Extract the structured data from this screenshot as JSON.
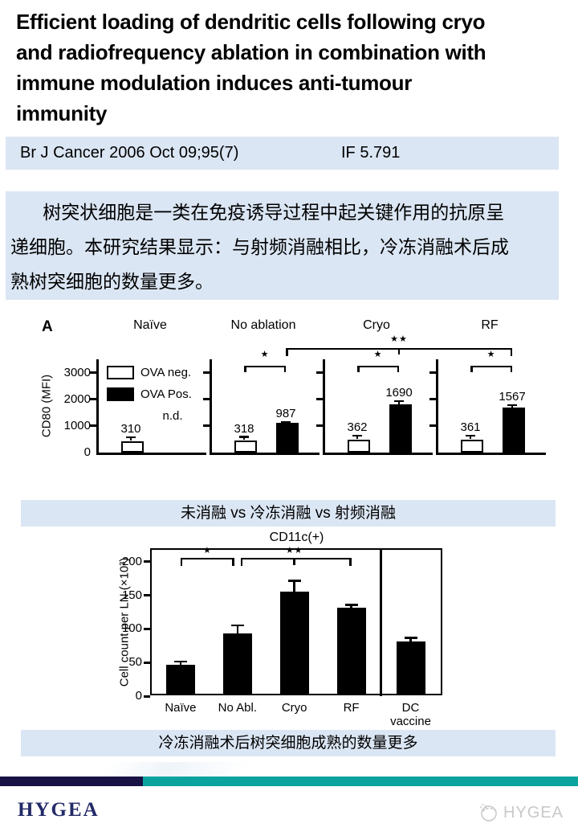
{
  "slide": {
    "title_lines": [
      "Efficient loading of dendritic cells following cryo",
      "and radiofrequency ablation in combination with",
      "immune modulation induces anti-tumour",
      "immunity"
    ],
    "journal_line": {
      "citation": "Br J Cancer 2006 Oct 09;95(7)",
      "impact_factor": "IF 5.791"
    },
    "abstract_lines": [
      "树突状细胞是一类在免疫诱导过程中起关键作用的抗原呈",
      "递细胞。本研究结果显示：与射频消融相比，冷冻消融术后成",
      "熟树突细胞的数量更多。"
    ],
    "caption_figure_a": "未消融 vs 冷冻消融 vs 射频消融",
    "caption_figure_b": "冷冻消融术后树突细胞成熟的数量更多",
    "footer": {
      "brand": "HYGEA",
      "watermark": "HYGEA"
    },
    "colors": {
      "panel_blue": "#dbe6f4",
      "footer_navy": "#171144",
      "footer_teal": "#0aa39d",
      "brand_navy": "#232a68",
      "watermark_gray": "#c9c9c9"
    }
  },
  "chart_data": [
    {
      "id": "figure_a",
      "type": "bar",
      "panel_label": "A",
      "ylabel": "CD80 (MFI)",
      "y_ticks": [
        0,
        1000,
        2000,
        3000
      ],
      "ylim": [
        0,
        3500
      ],
      "grid": false,
      "legend_position": "top-left of first panel",
      "legend": [
        {
          "name": "OVA neg.",
          "fill": "#ffffff"
        },
        {
          "name": "OVA Pos.",
          "fill": "#000000"
        }
      ],
      "panels": [
        {
          "title": "Naïve",
          "bars": [
            {
              "series": "OVA neg.",
              "value": 310,
              "err": 80,
              "label": "310"
            }
          ],
          "note": "n.d.",
          "sig": null
        },
        {
          "title": "No ablation",
          "bars": [
            {
              "series": "OVA neg.",
              "value": 318,
              "err": 80,
              "label": "318"
            },
            {
              "series": "OVA Pos.",
              "value": 987,
              "err": 120,
              "label": "987"
            }
          ],
          "note": null,
          "sig": "★"
        },
        {
          "title": "Cryo",
          "bars": [
            {
              "series": "OVA neg.",
              "value": 362,
              "err": 80,
              "label": "362"
            },
            {
              "series": "OVA Pos.",
              "value": 1690,
              "err": 200,
              "label": "1690"
            }
          ],
          "note": null,
          "sig": "★"
        },
        {
          "title": "RF",
          "bars": [
            {
              "series": "OVA neg.",
              "value": 361,
              "err": 80,
              "label": "361"
            },
            {
              "series": "OVA Pos.",
              "value": 1567,
              "err": 180,
              "label": "1567"
            }
          ],
          "note": null,
          "sig": "★"
        }
      ],
      "cross_panel_sig": {
        "label": "★★",
        "from_panel": 1,
        "to_panel": 3,
        "mid_tick_panel": 2
      }
    },
    {
      "id": "figure_b",
      "type": "bar",
      "title": "CD11c(+)",
      "ylabel": "Cell count per LN (×10³)",
      "y_ticks": [
        0,
        50,
        100,
        150,
        200
      ],
      "ylim": [
        0,
        220
      ],
      "grid": false,
      "categories": [
        "Naïve",
        "No Abl.",
        "Cryo",
        "RF",
        "DC\nvaccine"
      ],
      "values": [
        44,
        90,
        152,
        128,
        78
      ],
      "errors": [
        6,
        14,
        18,
        6,
        7
      ],
      "separate_last_group": true,
      "sig_brackets": [
        {
          "label": "★",
          "from": 0,
          "to": 1,
          "mid_tick": null
        },
        {
          "label": "★★",
          "from": 1,
          "to": 3,
          "mid_tick": 2
        }
      ]
    }
  ]
}
